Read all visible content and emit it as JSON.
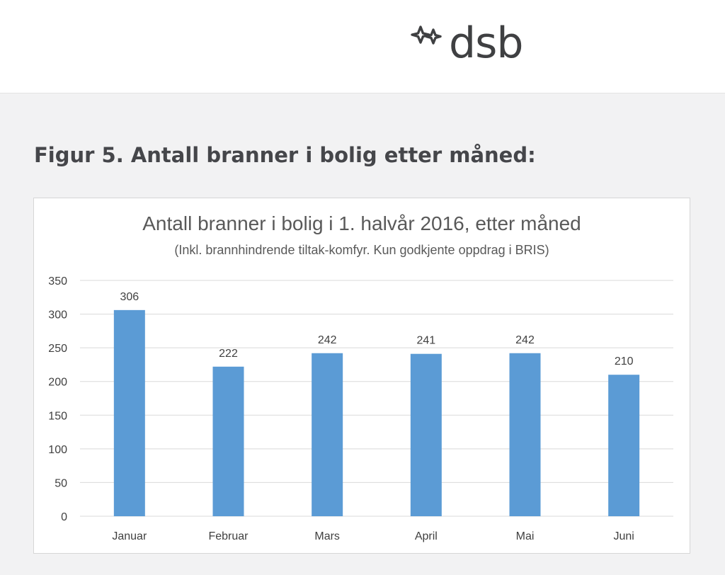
{
  "header": {
    "logo_text": "dsb",
    "logo_icon": "dsb-star-logo-icon"
  },
  "figure": {
    "heading": "Figur 5. Antall branner i bolig etter måned:"
  },
  "colors": {
    "bar": "#5b9bd5",
    "gridline": "#d9d9d9",
    "label": "#404040",
    "page_background": "#f2f2f3"
  },
  "chart_data": {
    "type": "bar",
    "title": "Antall branner i bolig i 1. halvår 2016, etter måned",
    "subtitle": "(Inkl. brannhindrende tiltak-komfyr. Kun godkjente oppdrag i BRIS)",
    "categories": [
      "Januar",
      "Februar",
      "Mars",
      "April",
      "Mai",
      "Juni"
    ],
    "values": [
      306,
      222,
      242,
      241,
      242,
      210
    ],
    "data_labels": [
      "306",
      "222",
      "242",
      "241",
      "242",
      "210"
    ],
    "xlabel": "",
    "ylabel": "",
    "ylim": [
      0,
      350
    ],
    "yticks": [
      0,
      50,
      100,
      150,
      200,
      250,
      300,
      350
    ],
    "grid": true,
    "legend": "none"
  }
}
